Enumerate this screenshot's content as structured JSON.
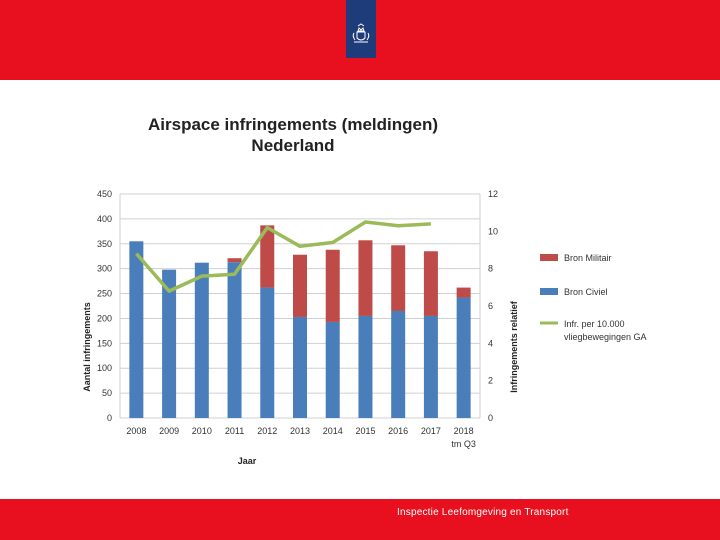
{
  "colors": {
    "band_red": "#E8101E",
    "emblem_blue": "#1F3C7A",
    "civiel": "#4A7EBB",
    "militair": "#BE4B48",
    "line": "#9BBB59",
    "grid": "#D0D0D0"
  },
  "header": {
    "emblem_icon": "royal-coat-of-arms-icon"
  },
  "footer": {
    "text": "Inspectie Leefomgeving en Transport"
  },
  "chart_data": {
    "type": "bar",
    "stacked": true,
    "title_lines": [
      "Airspace infringements (meldingen)",
      "Nederland"
    ],
    "categories": [
      "2008",
      "2009",
      "2010",
      "2011",
      "2012",
      "2013",
      "2014",
      "2015",
      "2016",
      "2017",
      "2018"
    ],
    "category_sublabels": [
      "",
      "",
      "",
      "",
      "",
      "",
      "",
      "",
      "",
      "",
      "tm Q3"
    ],
    "xlabel": "Jaar",
    "ylabel_left": "Aantal infringements",
    "ylabel_right": "Infringements relatief",
    "ylim_left": [
      0,
      450
    ],
    "yticks_left": [
      0,
      50,
      100,
      150,
      200,
      250,
      300,
      350,
      400,
      450
    ],
    "ylim_right": [
      0,
      12
    ],
    "yticks_right": [
      0,
      2,
      4,
      6,
      8,
      10,
      12
    ],
    "grid": true,
    "legend_position": "right",
    "series": [
      {
        "name": "Bron Militair",
        "type": "bar",
        "color": "#BE4B48",
        "values": [
          0,
          0,
          0,
          8,
          125,
          125,
          145,
          152,
          132,
          130,
          20
        ]
      },
      {
        "name": "Bron Civiel",
        "type": "bar",
        "color": "#4A7EBB",
        "values": [
          355,
          298,
          312,
          313,
          262,
          203,
          193,
          205,
          215,
          205,
          242
        ]
      },
      {
        "name": "Infr. per 10.000 vliegbewegingen GA",
        "type": "line",
        "axis": "right",
        "color": "#9BBB59",
        "values": [
          8.8,
          6.8,
          7.6,
          7.7,
          10.2,
          9.2,
          9.4,
          10.5,
          10.3,
          10.4,
          null
        ]
      }
    ],
    "legend": [
      "Bron Militair",
      "Bron Civiel",
      "Infr. per 10.000 vliegbewegingen GA"
    ]
  }
}
